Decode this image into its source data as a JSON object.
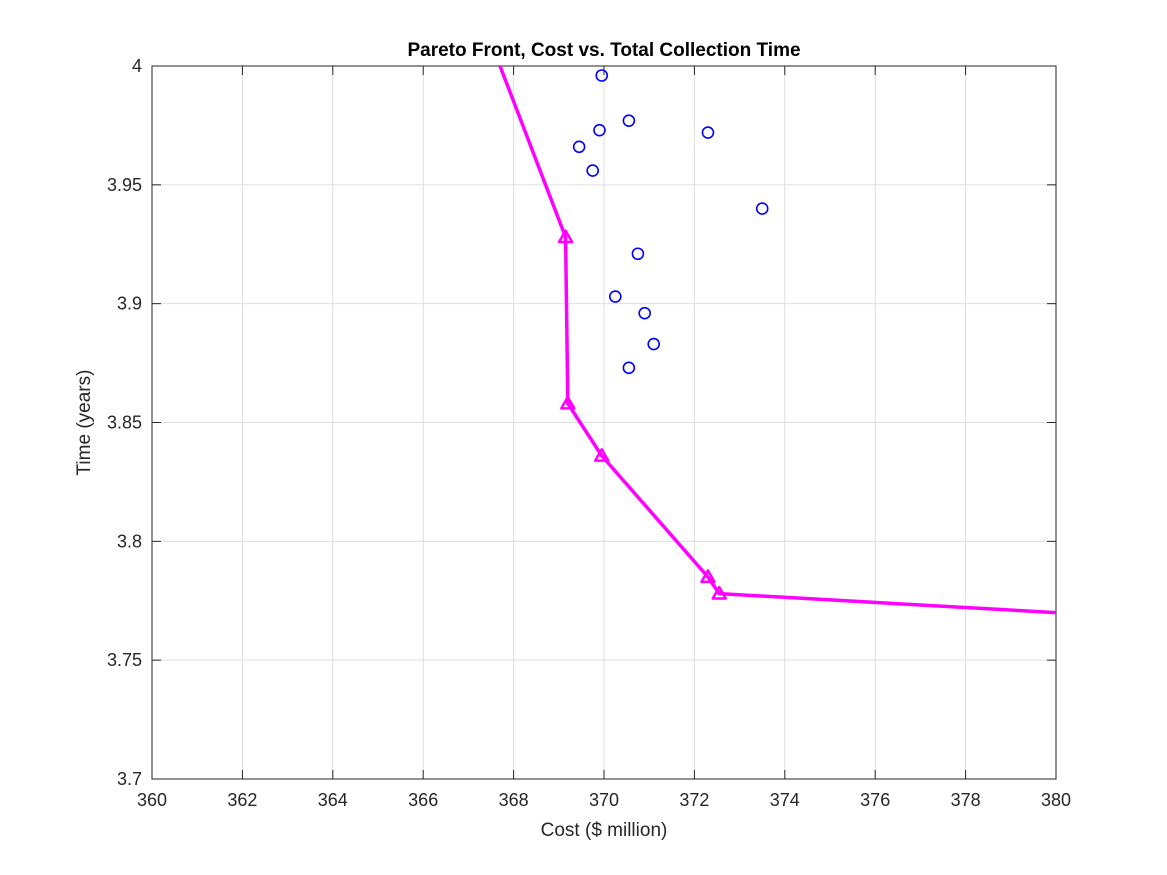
{
  "chart_data": {
    "type": "scatter",
    "title": "Pareto Front, Cost vs. Total Collection Time",
    "xlabel": "Cost ($ million)",
    "ylabel": "Time (years)",
    "xlim": [
      360,
      380
    ],
    "ylim": [
      3.7,
      4
    ],
    "x_ticks": [
      "360",
      "362",
      "364",
      "366",
      "368",
      "370",
      "372",
      "374",
      "376",
      "378",
      "380"
    ],
    "y_ticks": [
      "3.7",
      "3.75",
      "3.8",
      "3.85",
      "3.9",
      "3.95",
      "4"
    ],
    "grid": true,
    "legend": "none",
    "colors": {
      "dominated": "#0000ff",
      "front": "#ff00ff",
      "axes": "#262626",
      "grid": "#dfdfdf"
    },
    "series": [
      {
        "marker": "circle",
        "line": false,
        "color": "#0000ff",
        "points": [
          {
            "x": 369.95,
            "y": 3.996
          },
          {
            "x": 370.55,
            "y": 3.977
          },
          {
            "x": 369.9,
            "y": 3.973
          },
          {
            "x": 372.3,
            "y": 3.972
          },
          {
            "x": 369.45,
            "y": 3.966
          },
          {
            "x": 369.75,
            "y": 3.956
          },
          {
            "x": 373.5,
            "y": 3.94
          },
          {
            "x": 370.75,
            "y": 3.921
          },
          {
            "x": 370.25,
            "y": 3.903
          },
          {
            "x": 370.9,
            "y": 3.896
          },
          {
            "x": 371.1,
            "y": 3.883
          },
          {
            "x": 370.55,
            "y": 3.873
          }
        ]
      },
      {
        "marker": "triangle",
        "line": true,
        "color": "#ff00ff",
        "points": [
          {
            "x": 367.7,
            "y": 4.0
          },
          {
            "x": 369.15,
            "y": 3.928
          },
          {
            "x": 369.2,
            "y": 3.858
          },
          {
            "x": 369.95,
            "y": 3.836
          },
          {
            "x": 372.3,
            "y": 3.785
          },
          {
            "x": 372.55,
            "y": 3.778
          },
          {
            "x": 380.0,
            "y": 3.77
          }
        ],
        "marked_points": [
          {
            "x": 369.15,
            "y": 3.928
          },
          {
            "x": 369.2,
            "y": 3.858
          },
          {
            "x": 369.95,
            "y": 3.836
          },
          {
            "x": 372.3,
            "y": 3.785
          },
          {
            "x": 372.55,
            "y": 3.778
          }
        ]
      }
    ]
  }
}
